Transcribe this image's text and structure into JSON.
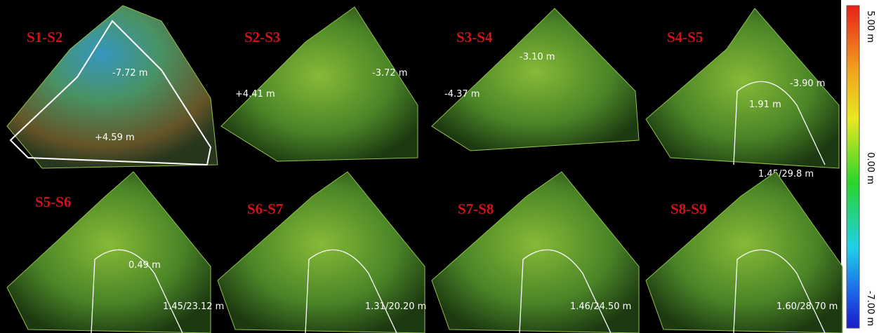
{
  "panels": [
    {
      "title": "S1-S2",
      "annotations": [
        "-7.72 m",
        "+4.59 m"
      ]
    },
    {
      "title": "S2-S3",
      "annotations": [
        "+4.41 m",
        "-3.72 m"
      ]
    },
    {
      "title": "S3-S4",
      "annotations": [
        "-3.10 m",
        "-4.37 m"
      ]
    },
    {
      "title": "S4-S5",
      "annotations": [
        "-3.90 m",
        "1.91 m",
        "1.45/29.8 m"
      ]
    },
    {
      "title": "S5-S6",
      "annotations": [
        "0.49 m",
        "1.45/23.12 m"
      ]
    },
    {
      "title": "S6-S7",
      "annotations": [
        "1.31/20.20 m"
      ]
    },
    {
      "title": "S7-S8",
      "annotations": [
        "1.46/24.50 m"
      ]
    },
    {
      "title": "S8-S9",
      "annotations": [
        "1.60/28.70 m"
      ]
    }
  ],
  "colorbar": {
    "labels": [
      "5.00 m",
      "0.00 m",
      "-7.00 m"
    ]
  }
}
